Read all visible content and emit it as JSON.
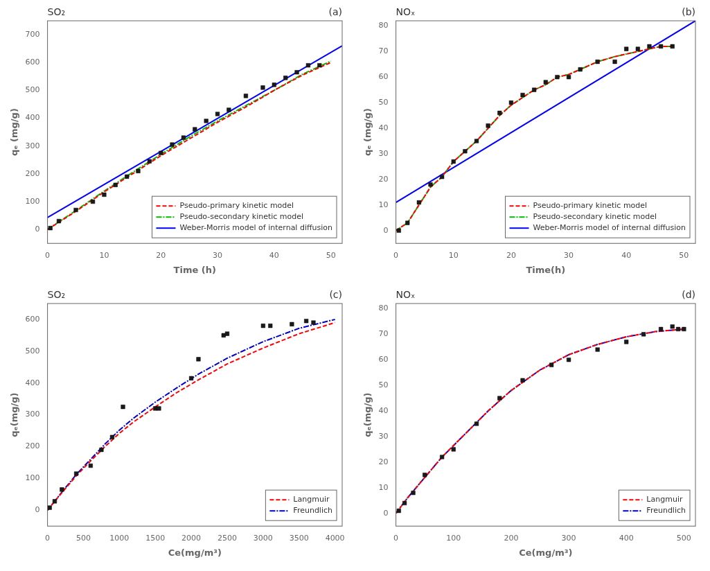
{
  "chart_data": [
    {
      "type": "line",
      "annotations": [
        "SO₂",
        "(a)"
      ],
      "xlabel": "Time (h)",
      "ylabel": "qₑ (mg/g)",
      "xlim": [
        0,
        52
      ],
      "ylim": [
        -50,
        750
      ],
      "xticks": [
        0,
        10,
        20,
        30,
        40,
        50
      ],
      "yticks": [
        0,
        100,
        200,
        300,
        400,
        500,
        600,
        700
      ],
      "grid": false,
      "legend": "lower right",
      "series": [
        {
          "name": "Pseudo-primary kinetic model",
          "color": "#FF0000",
          "line_style": "dashed",
          "x": [
            0,
            5,
            10,
            15,
            20,
            25,
            30,
            35,
            40,
            45,
            50
          ],
          "values": [
            0,
            65,
            135,
            200,
            265,
            325,
            385,
            440,
            500,
            555,
            600
          ]
        },
        {
          "name": "Pseudo-secondary kinetic model",
          "color": "#00BB00",
          "line_style": "dashdot",
          "x": [
            0,
            5,
            10,
            15,
            20,
            25,
            30,
            35,
            40,
            45,
            50
          ],
          "values": [
            0,
            68,
            138,
            205,
            270,
            332,
            390,
            445,
            500,
            558,
            605
          ]
        },
        {
          "name": "Weber-Morris model of internal diffusion",
          "color": "#0000FF",
          "line_style": "solid",
          "x": [
            0,
            52
          ],
          "values": [
            43,
            660
          ]
        },
        {
          "type": "scatter",
          "color": "#1a1a1a",
          "marker": "square",
          "x": [
            0.5,
            2,
            5,
            8,
            10,
            12,
            14,
            16,
            18,
            20,
            22,
            24,
            26,
            28,
            30,
            32,
            35,
            38,
            40,
            42,
            44,
            46,
            48
          ],
          "values": [
            5,
            30,
            70,
            100,
            125,
            160,
            190,
            210,
            245,
            275,
            305,
            330,
            360,
            390,
            415,
            430,
            480,
            510,
            520,
            545,
            565,
            590,
            590
          ]
        }
      ]
    },
    {
      "type": "line",
      "annotations": [
        "NOₓ",
        "(b)"
      ],
      "xlabel": "Time(h)",
      "ylabel": "qₑ (mg/g)",
      "xlim": [
        0,
        52
      ],
      "ylim": [
        -5,
        82
      ],
      "xticks": [
        0,
        10,
        20,
        30,
        40,
        50
      ],
      "yticks": [
        0,
        10,
        20,
        30,
        40,
        50,
        60,
        70,
        80
      ],
      "grid": false,
      "legend": "lower right",
      "series": [
        {
          "name": "Pseudo-primary kinetic model",
          "color": "#FF0000",
          "line_style": "dashed",
          "x": [
            0,
            2,
            4,
            6,
            8,
            10,
            12,
            14,
            16,
            18,
            20,
            22,
            24,
            26,
            28,
            30,
            32,
            35,
            38,
            40,
            42,
            44,
            46,
            48
          ],
          "values": [
            0,
            3,
            10,
            17,
            21,
            27,
            31,
            35,
            40,
            45,
            49,
            52,
            55,
            57,
            60,
            61,
            63,
            66,
            68,
            69,
            70,
            71,
            72,
            72
          ]
        },
        {
          "name": "Pseudo-secondary kinetic model",
          "color": "#00BB00",
          "line_style": "dashdot",
          "x": [
            0,
            2,
            4,
            6,
            8,
            10,
            12,
            14,
            16,
            18,
            20,
            22,
            24,
            26,
            28,
            30,
            32,
            35,
            38,
            40,
            42,
            44,
            46,
            48
          ],
          "values": [
            0,
            3,
            10,
            17,
            21,
            27,
            31,
            35,
            40,
            45,
            49,
            52,
            55,
            57,
            60,
            61,
            63,
            66,
            68,
            69,
            70,
            71,
            72,
            72
          ]
        },
        {
          "name": "Weber-Morris model of internal diffusion",
          "color": "#0000FF",
          "line_style": "solid",
          "x": [
            0,
            52
          ],
          "values": [
            11,
            82
          ]
        },
        {
          "type": "scatter",
          "color": "#1a1a1a",
          "marker": "square",
          "x": [
            0.5,
            2,
            4,
            6,
            8,
            10,
            12,
            14,
            16,
            18,
            20,
            22,
            24,
            26,
            28,
            30,
            32,
            35,
            38,
            40,
            42,
            44,
            46,
            48
          ],
          "values": [
            0,
            3,
            11,
            18,
            21,
            27,
            31,
            35,
            41,
            46,
            50,
            53,
            55,
            58,
            60,
            60,
            63,
            66,
            66,
            71,
            71,
            72,
            72,
            72
          ]
        }
      ]
    },
    {
      "type": "line",
      "annotations": [
        "SO₂",
        "(c)"
      ],
      "xlabel": "Ce(mg/m³)",
      "ylabel": "qₑ(mg/g)",
      "xlim": [
        0,
        4100
      ],
      "ylim": [
        -50,
        650
      ],
      "xticks": [
        0,
        500,
        1000,
        1500,
        2000,
        2500,
        3000,
        3500,
        4000
      ],
      "yticks": [
        0,
        100,
        200,
        300,
        400,
        500,
        600
      ],
      "grid": false,
      "legend": "lower right",
      "series": [
        {
          "name": "Langmuir",
          "color": "#FF0000",
          "line_style": "dashed",
          "x": [
            0,
            100,
            200,
            400,
            600,
            800,
            1000,
            1200,
            1500,
            1800,
            2100,
            2500,
            3000,
            3500,
            4000
          ],
          "values": [
            0,
            28,
            55,
            108,
            155,
            200,
            242,
            278,
            325,
            370,
            410,
            460,
            510,
            555,
            590
          ]
        },
        {
          "name": "Freundlich",
          "color": "#0000CC",
          "line_style": "dashdot",
          "x": [
            0,
            100,
            200,
            400,
            600,
            800,
            1000,
            1200,
            1500,
            1800,
            2100,
            2500,
            3000,
            3500,
            4000
          ],
          "values": [
            0,
            28,
            57,
            112,
            160,
            208,
            252,
            290,
            340,
            385,
            428,
            478,
            530,
            572,
            600
          ]
        },
        {
          "type": "scatter",
          "color": "#1a1a1a",
          "marker": "square",
          "x": [
            30,
            100,
            200,
            400,
            600,
            750,
            900,
            1050,
            1500,
            1550,
            2000,
            2100,
            2450,
            2500,
            3000,
            3100,
            3400,
            3600,
            3700
          ],
          "values": [
            8,
            28,
            65,
            115,
            140,
            190,
            230,
            325,
            320,
            320,
            415,
            475,
            550,
            555,
            580,
            580,
            585,
            595,
            590
          ]
        }
      ]
    },
    {
      "type": "line",
      "annotations": [
        "NOₓ",
        "(d)"
      ],
      "xlabel": "Ce(mg/m³)",
      "ylabel": "qₑ(mg/g)",
      "xlim": [
        0,
        520
      ],
      "ylim": [
        -5,
        82
      ],
      "xticks": [
        0,
        100,
        200,
        300,
        400,
        500
      ],
      "yticks": [
        0,
        10,
        20,
        30,
        40,
        50,
        60,
        70,
        80
      ],
      "grid": false,
      "legend": "lower right",
      "series": [
        {
          "name": "Langmuir",
          "color": "#FF0000",
          "line_style": "dashed",
          "x": [
            0,
            20,
            50,
            80,
            120,
            160,
            200,
            250,
            300,
            350,
            400,
            450,
            500
          ],
          "values": [
            0,
            6,
            14,
            22,
            31,
            40,
            48,
            56,
            62,
            66,
            69,
            71,
            72
          ]
        },
        {
          "name": "Freundlich",
          "color": "#0000CC",
          "line_style": "dashdot",
          "x": [
            0,
            20,
            50,
            80,
            120,
            160,
            200,
            250,
            300,
            350,
            400,
            450,
            500
          ],
          "values": [
            0,
            6,
            14,
            22,
            31,
            40,
            48,
            56,
            62,
            66,
            69,
            71,
            72
          ]
        },
        {
          "type": "scatter",
          "color": "#1a1a1a",
          "marker": "square",
          "x": [
            5,
            15,
            30,
            50,
            80,
            100,
            140,
            180,
            220,
            270,
            300,
            350,
            400,
            430,
            460,
            480,
            490,
            500
          ],
          "values": [
            1,
            4,
            8,
            15,
            22,
            25,
            35,
            45,
            52,
            58,
            60,
            64,
            67,
            70,
            72,
            73,
            72,
            72
          ]
        }
      ]
    }
  ]
}
